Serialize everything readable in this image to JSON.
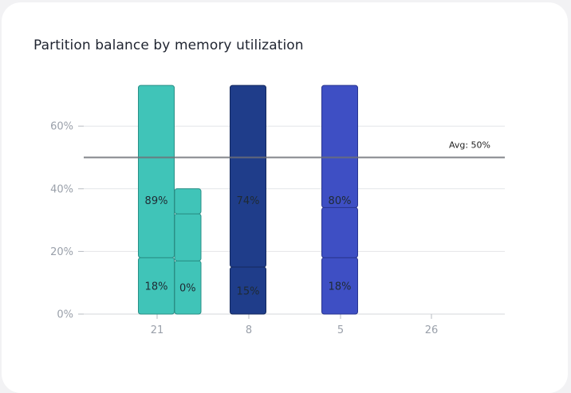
{
  "title": "Partition balance by memory utilization",
  "chart_data": {
    "type": "bar",
    "title": "Partition balance by memory utilization",
    "ylim": [
      0,
      75
    ],
    "y_ticks": [
      "0%",
      "20%",
      "40%",
      "60%"
    ],
    "grid": true,
    "avg_line": {
      "value": 50,
      "label": "Avg: 50%"
    },
    "categories": [
      "21",
      "8",
      "5",
      "26"
    ],
    "bars": [
      {
        "category": "21",
        "color": "#40c4b8",
        "stroke": "#2a8f86",
        "segments": [
          {
            "from": 0,
            "to": 18,
            "label": "18%"
          },
          {
            "from": 18,
            "to": 73,
            "label": "89%"
          }
        ]
      },
      {
        "category": "21",
        "color": "#40c4b8",
        "stroke": "#2a8f86",
        "secondary": true,
        "segments": [
          {
            "from": 0,
            "to": 17,
            "label": "0%"
          },
          {
            "from": 17,
            "to": 32,
            "label": ""
          },
          {
            "from": 32,
            "to": 40,
            "label": ""
          }
        ]
      },
      {
        "category": "8",
        "color": "#1f3d8a",
        "stroke": "#14295e",
        "segments": [
          {
            "from": 0,
            "to": 15,
            "label": "15%"
          },
          {
            "from": 15,
            "to": 73,
            "label": "74%"
          }
        ]
      },
      {
        "category": "5",
        "color": "#3e4fc4",
        "stroke": "#2a3690",
        "segments": [
          {
            "from": 0,
            "to": 18,
            "label": "18%"
          },
          {
            "from": 18,
            "to": 34,
            "label": ""
          },
          {
            "from": 34,
            "to": 73,
            "label": "80%"
          }
        ]
      }
    ]
  }
}
